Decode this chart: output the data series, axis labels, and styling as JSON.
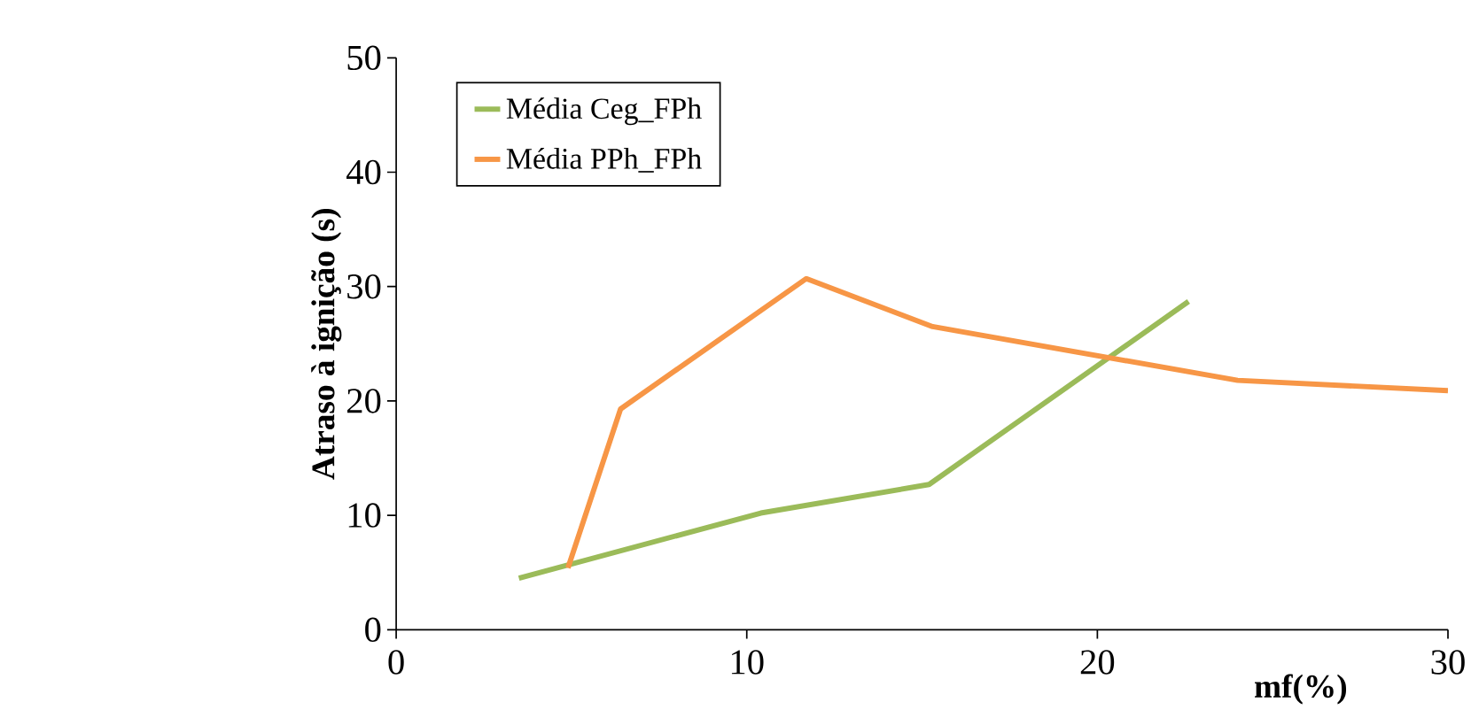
{
  "chart_data": {
    "type": "line",
    "xlabel": "mf(%)",
    "ylabel": "Atraso à ignição (s)",
    "xlim": [
      0,
      30
    ],
    "ylim": [
      0,
      50
    ],
    "xticks": [
      0,
      10,
      20,
      30
    ],
    "yticks": [
      0,
      10,
      20,
      30,
      40,
      50
    ],
    "grid": false,
    "legend": "top left",
    "marker": "none",
    "line_style": "solid",
    "series": [
      {
        "name": "Média Ceg_FPh",
        "color": "#9bbb59",
        "x": [
          3.5,
          10.4,
          15.2,
          22.6
        ],
        "values": [
          4.5,
          10.2,
          12.7,
          28.7
        ]
      },
      {
        "name": "Média PPh_FPh",
        "color": "#f79646",
        "x": [
          4.9,
          6.4,
          11.7,
          15.3,
          24.0,
          30.0
        ],
        "values": [
          5.4,
          19.3,
          30.7,
          26.5,
          21.8,
          20.9
        ]
      }
    ]
  }
}
